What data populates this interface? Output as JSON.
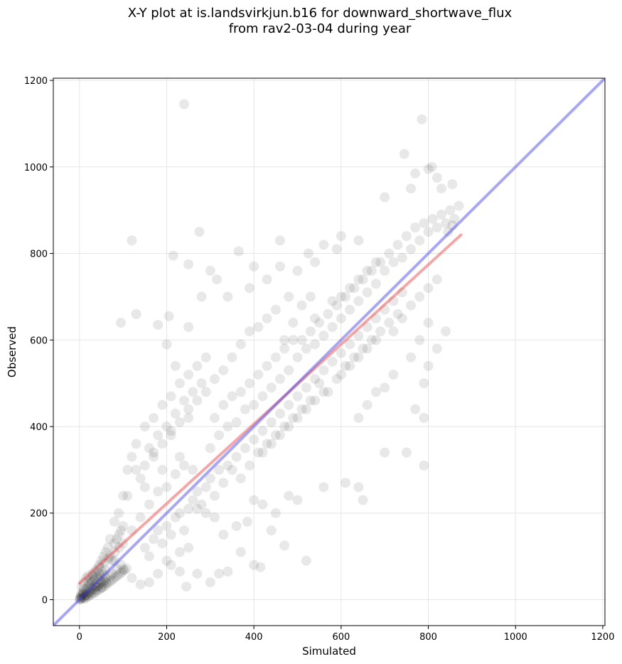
{
  "chart_data": {
    "type": "scatter",
    "title": "X-Y plot at is.landsvirkjun.b16 for downward_shortwave_flux",
    "subtitle": "from rav2-03-04 during year",
    "xlabel": "Simulated",
    "ylabel": "Observed",
    "xlim": [
      -60,
      1205
    ],
    "ylim": [
      -60,
      1205
    ],
    "xticks": [
      0,
      200,
      400,
      600,
      800,
      1000,
      1200
    ],
    "yticks": [
      0,
      200,
      400,
      600,
      800,
      1000,
      1200
    ],
    "grid": true,
    "points": [
      [
        0,
        0
      ],
      [
        1,
        3
      ],
      [
        2,
        1
      ],
      [
        3,
        6
      ],
      [
        5,
        2
      ],
      [
        4,
        9
      ],
      [
        6,
        5
      ],
      [
        8,
        12
      ],
      [
        10,
        4
      ],
      [
        9,
        15
      ],
      [
        12,
        8
      ],
      [
        14,
        20
      ],
      [
        15,
        11
      ],
      [
        17,
        25
      ],
      [
        19,
        14
      ],
      [
        20,
        30
      ],
      [
        22,
        18
      ],
      [
        24,
        35
      ],
      [
        25,
        21
      ],
      [
        27,
        28
      ],
      [
        28,
        40
      ],
      [
        30,
        24
      ],
      [
        32,
        45
      ],
      [
        34,
        33
      ],
      [
        35,
        50
      ],
      [
        37,
        29
      ],
      [
        39,
        38
      ],
      [
        40,
        55
      ],
      [
        42,
        31
      ],
      [
        44,
        47
      ],
      [
        45,
        60
      ],
      [
        47,
        36
      ],
      [
        49,
        52
      ],
      [
        50,
        42
      ],
      [
        52,
        65
      ],
      [
        54,
        38
      ],
      [
        55,
        58
      ],
      [
        57,
        45
      ],
      [
        59,
        70
      ],
      [
        60,
        50
      ],
      [
        3,
        12
      ],
      [
        7,
        18
      ],
      [
        11,
        25
      ],
      [
        16,
        10
      ],
      [
        21,
        40
      ],
      [
        26,
        15
      ],
      [
        31,
        55
      ],
      [
        36,
        22
      ],
      [
        41,
        30
      ],
      [
        46,
        75
      ],
      [
        51,
        28
      ],
      [
        56,
        85
      ],
      [
        61,
        40
      ],
      [
        66,
        95
      ],
      [
        71,
        55
      ],
      [
        76,
        60
      ],
      [
        81,
        110
      ],
      [
        86,
        70
      ],
      [
        91,
        120
      ],
      [
        96,
        80
      ],
      [
        70,
        140
      ],
      [
        80,
        180
      ],
      [
        90,
        200
      ],
      [
        100,
        130
      ],
      [
        110,
        240
      ],
      [
        120,
        160
      ],
      [
        130,
        300
      ],
      [
        140,
        190
      ],
      [
        150,
        260
      ],
      [
        160,
        220
      ],
      [
        170,
        340
      ],
      [
        180,
        250
      ],
      [
        190,
        300
      ],
      [
        200,
        260
      ],
      [
        210,
        380
      ],
      [
        220,
        290
      ],
      [
        230,
        330
      ],
      [
        240,
        310
      ],
      [
        250,
        420
      ],
      [
        260,
        300
      ],
      [
        100,
        240
      ],
      [
        110,
        300
      ],
      [
        120,
        330
      ],
      [
        130,
        360
      ],
      [
        140,
        280
      ],
      [
        150,
        400
      ],
      [
        160,
        350
      ],
      [
        170,
        420
      ],
      [
        180,
        380
      ],
      [
        190,
        450
      ],
      [
        200,
        400
      ],
      [
        210,
        470
      ],
      [
        220,
        430
      ],
      [
        230,
        500
      ],
      [
        240,
        460
      ],
      [
        250,
        520
      ],
      [
        260,
        480
      ],
      [
        270,
        540
      ],
      [
        280,
        500
      ],
      [
        290,
        560
      ],
      [
        150,
        120
      ],
      [
        160,
        100
      ],
      [
        170,
        140
      ],
      [
        180,
        160
      ],
      [
        190,
        130
      ],
      [
        200,
        170
      ],
      [
        210,
        150
      ],
      [
        220,
        190
      ],
      [
        230,
        200
      ],
      [
        240,
        160
      ],
      [
        250,
        210
      ],
      [
        260,
        230
      ],
      [
        270,
        250
      ],
      [
        280,
        220
      ],
      [
        290,
        260
      ],
      [
        300,
        280
      ],
      [
        310,
        240
      ],
      [
        320,
        300
      ],
      [
        330,
        270
      ],
      [
        340,
        310
      ],
      [
        300,
        350
      ],
      [
        310,
        420
      ],
      [
        320,
        380
      ],
      [
        330,
        450
      ],
      [
        340,
        400
      ],
      [
        350,
        470
      ],
      [
        360,
        410
      ],
      [
        370,
        480
      ],
      [
        380,
        440
      ],
      [
        390,
        500
      ],
      [
        400,
        450
      ],
      [
        410,
        520
      ],
      [
        420,
        470
      ],
      [
        430,
        540
      ],
      [
        440,
        490
      ],
      [
        450,
        560
      ],
      [
        460,
        510
      ],
      [
        470,
        580
      ],
      [
        480,
        530
      ],
      [
        490,
        600
      ],
      [
        350,
        300
      ],
      [
        360,
        330
      ],
      [
        370,
        280
      ],
      [
        380,
        350
      ],
      [
        390,
        310
      ],
      [
        400,
        370
      ],
      [
        410,
        340
      ],
      [
        420,
        390
      ],
      [
        430,
        360
      ],
      [
        440,
        410
      ],
      [
        450,
        380
      ],
      [
        460,
        430
      ],
      [
        470,
        400
      ],
      [
        480,
        450
      ],
      [
        490,
        420
      ],
      [
        500,
        470
      ],
      [
        510,
        440
      ],
      [
        520,
        490
      ],
      [
        530,
        460
      ],
      [
        540,
        510
      ],
      [
        500,
        560
      ],
      [
        510,
        600
      ],
      [
        520,
        580
      ],
      [
        530,
        620
      ],
      [
        540,
        590
      ],
      [
        550,
        640
      ],
      [
        560,
        610
      ],
      [
        570,
        660
      ],
      [
        580,
        630
      ],
      [
        590,
        680
      ],
      [
        600,
        650
      ],
      [
        610,
        700
      ],
      [
        620,
        670
      ],
      [
        630,
        720
      ],
      [
        640,
        690
      ],
      [
        650,
        740
      ],
      [
        660,
        710
      ],
      [
        670,
        760
      ],
      [
        680,
        730
      ],
      [
        690,
        780
      ],
      [
        550,
        500
      ],
      [
        560,
        530
      ],
      [
        570,
        480
      ],
      [
        580,
        550
      ],
      [
        590,
        510
      ],
      [
        600,
        570
      ],
      [
        610,
        540
      ],
      [
        620,
        590
      ],
      [
        630,
        560
      ],
      [
        640,
        610
      ],
      [
        650,
        580
      ],
      [
        660,
        630
      ],
      [
        670,
        600
      ],
      [
        680,
        650
      ],
      [
        690,
        620
      ],
      [
        700,
        670
      ],
      [
        710,
        640
      ],
      [
        720,
        690
      ],
      [
        730,
        660
      ],
      [
        740,
        710
      ],
      [
        700,
        760
      ],
      [
        710,
        800
      ],
      [
        720,
        780
      ],
      [
        730,
        820
      ],
      [
        740,
        790
      ],
      [
        750,
        840
      ],
      [
        760,
        810
      ],
      [
        770,
        860
      ],
      [
        780,
        830
      ],
      [
        790,
        870
      ],
      [
        800,
        850
      ],
      [
        810,
        880
      ],
      [
        820,
        860
      ],
      [
        830,
        890
      ],
      [
        840,
        870
      ],
      [
        850,
        900
      ],
      [
        860,
        880
      ],
      [
        870,
        910
      ],
      [
        845,
        850
      ],
      [
        855,
        865
      ],
      [
        720,
        620
      ],
      [
        740,
        650
      ],
      [
        760,
        680
      ],
      [
        780,
        700
      ],
      [
        800,
        720
      ],
      [
        820,
        740
      ],
      [
        780,
        600
      ],
      [
        800,
        640
      ],
      [
        760,
        560
      ],
      [
        790,
        500
      ],
      [
        800,
        540
      ],
      [
        820,
        580
      ],
      [
        840,
        620
      ],
      [
        790,
        420
      ],
      [
        770,
        440
      ],
      [
        720,
        520
      ],
      [
        700,
        490
      ],
      [
        680,
        480
      ],
      [
        660,
        450
      ],
      [
        640,
        420
      ],
      [
        240,
        1145
      ],
      [
        120,
        830
      ],
      [
        275,
        850
      ],
      [
        215,
        795
      ],
      [
        250,
        775
      ],
      [
        365,
        805
      ],
      [
        460,
        830
      ],
      [
        525,
        800
      ],
      [
        600,
        840
      ],
      [
        640,
        830
      ],
      [
        700,
        930
      ],
      [
        745,
        1030
      ],
      [
        770,
        985
      ],
      [
        785,
        1110
      ],
      [
        800,
        995
      ],
      [
        820,
        975
      ],
      [
        830,
        950
      ],
      [
        855,
        960
      ],
      [
        808,
        1000
      ],
      [
        760,
        950
      ],
      [
        95,
        640
      ],
      [
        130,
        660
      ],
      [
        180,
        635
      ],
      [
        205,
        655
      ],
      [
        200,
        590
      ],
      [
        220,
        540
      ],
      [
        250,
        630
      ],
      [
        280,
        700
      ],
      [
        300,
        760
      ],
      [
        315,
        740
      ],
      [
        340,
        700
      ],
      [
        390,
        720
      ],
      [
        400,
        770
      ],
      [
        430,
        740
      ],
      [
        460,
        770
      ],
      [
        480,
        700
      ],
      [
        500,
        760
      ],
      [
        540,
        780
      ],
      [
        560,
        820
      ],
      [
        590,
        810
      ],
      [
        790,
        310
      ],
      [
        750,
        340
      ],
      [
        700,
        340
      ],
      [
        650,
        230
      ],
      [
        640,
        260
      ],
      [
        610,
        270
      ],
      [
        560,
        260
      ],
      [
        520,
        90
      ],
      [
        470,
        125
      ],
      [
        440,
        160
      ],
      [
        415,
        75
      ],
      [
        400,
        80
      ],
      [
        370,
        110
      ],
      [
        340,
        65
      ],
      [
        320,
        60
      ],
      [
        300,
        40
      ],
      [
        270,
        60
      ],
      [
        245,
        30
      ],
      [
        230,
        65
      ],
      [
        210,
        80
      ],
      [
        500,
        230
      ],
      [
        480,
        240
      ],
      [
        450,
        200
      ],
      [
        420,
        220
      ],
      [
        400,
        230
      ],
      [
        385,
        180
      ],
      [
        360,
        170
      ],
      [
        330,
        150
      ],
      [
        310,
        190
      ],
      [
        290,
        200
      ],
      [
        270,
        210
      ],
      [
        250,
        120
      ],
      [
        230,
        110
      ],
      [
        200,
        90
      ],
      [
        180,
        60
      ],
      [
        160,
        40
      ],
      [
        140,
        35
      ],
      [
        120,
        50
      ],
      [
        100,
        70
      ],
      [
        80,
        90
      ],
      [
        600,
        520
      ],
      [
        620,
        540
      ],
      [
        640,
        560
      ],
      [
        660,
        580
      ],
      [
        680,
        600
      ],
      [
        560,
        480
      ],
      [
        540,
        460
      ],
      [
        520,
        440
      ],
      [
        500,
        420
      ],
      [
        480,
        400
      ],
      [
        460,
        380
      ],
      [
        440,
        360
      ],
      [
        420,
        340
      ],
      [
        580,
        690
      ],
      [
        600,
        700
      ],
      [
        620,
        720
      ],
      [
        640,
        740
      ],
      [
        660,
        760
      ],
      [
        680,
        780
      ],
      [
        540,
        650
      ],
      [
        350,
        560
      ],
      [
        370,
        590
      ],
      [
        390,
        620
      ],
      [
        410,
        630
      ],
      [
        430,
        650
      ],
      [
        450,
        670
      ],
      [
        470,
        600
      ],
      [
        490,
        640
      ],
      [
        510,
        680
      ],
      [
        530,
        700
      ],
      [
        330,
        530
      ],
      [
        310,
        510
      ],
      [
        290,
        480
      ],
      [
        270,
        460
      ],
      [
        250,
        440
      ],
      [
        230,
        410
      ],
      [
        210,
        390
      ],
      [
        190,
        360
      ],
      [
        170,
        330
      ],
      [
        150,
        310
      ],
      [
        5,
        30
      ],
      [
        10,
        40
      ],
      [
        15,
        50
      ],
      [
        20,
        55
      ],
      [
        25,
        45
      ],
      [
        30,
        60
      ],
      [
        35,
        65
      ],
      [
        40,
        70
      ],
      [
        45,
        80
      ],
      [
        50,
        90
      ],
      [
        55,
        100
      ],
      [
        60,
        110
      ],
      [
        65,
        120
      ],
      [
        70,
        100
      ],
      [
        75,
        90
      ],
      [
        80,
        130
      ],
      [
        85,
        140
      ],
      [
        90,
        150
      ],
      [
        95,
        160
      ],
      [
        100,
        170
      ],
      [
        12,
        2
      ],
      [
        18,
        6
      ],
      [
        22,
        9
      ],
      [
        28,
        12
      ],
      [
        33,
        15
      ],
      [
        38,
        18
      ],
      [
        43,
        22
      ],
      [
        48,
        25
      ],
      [
        53,
        28
      ],
      [
        58,
        32
      ],
      [
        63,
        36
      ],
      [
        68,
        40
      ],
      [
        73,
        44
      ],
      [
        78,
        48
      ],
      [
        83,
        52
      ],
      [
        88,
        56
      ],
      [
        93,
        60
      ],
      [
        98,
        64
      ],
      [
        103,
        68
      ],
      [
        108,
        72
      ]
    ],
    "lines": [
      {
        "color": "#e63c3c",
        "x": [
          0,
          875
        ],
        "y": [
          38,
          843
        ]
      },
      {
        "color": "#3c3ce6",
        "x": [
          -60,
          1205
        ],
        "y": [
          -60,
          1205
        ]
      }
    ],
    "point_color": "#000000",
    "colors": {
      "background": "#ffffff",
      "grid": "#e5e5e5",
      "axis": "#000000"
    }
  }
}
